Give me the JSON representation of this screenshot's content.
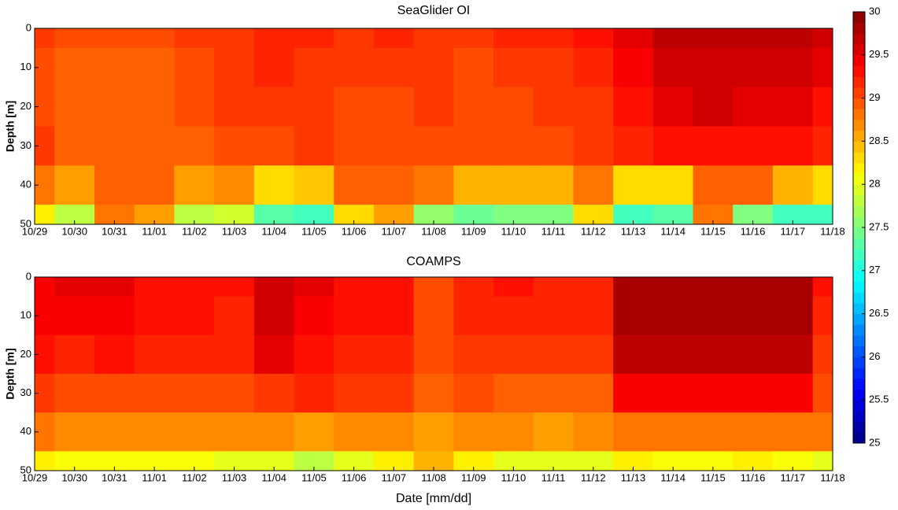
{
  "chart_data": [
    {
      "type": "heatmap",
      "title": "SeaGlider OI",
      "ylabel": "Depth [m]",
      "x": [
        "10/29",
        "10/30",
        "10/31",
        "11/01",
        "11/02",
        "11/03",
        "11/04",
        "11/05",
        "11/06",
        "11/07",
        "11/08",
        "11/09",
        "11/10",
        "11/11",
        "11/12",
        "11/13",
        "11/14",
        "11/15",
        "11/16",
        "11/17",
        "11/18"
      ],
      "y": [
        0,
        10,
        20,
        30,
        40,
        50
      ],
      "values": [
        [
          29.1,
          29.0,
          29.0,
          29.0,
          29.1,
          29.1,
          29.2,
          29.2,
          29.1,
          29.2,
          29.1,
          29.1,
          29.2,
          29.2,
          29.3,
          29.5,
          29.7,
          29.7,
          29.7,
          29.7,
          29.6
        ],
        [
          29.0,
          28.9,
          28.9,
          28.9,
          29.0,
          29.1,
          29.2,
          29.1,
          29.1,
          29.1,
          29.1,
          29.0,
          29.1,
          29.1,
          29.2,
          29.4,
          29.6,
          29.6,
          29.6,
          29.6,
          29.5
        ],
        [
          29.0,
          28.9,
          28.9,
          28.9,
          29.0,
          29.1,
          29.1,
          29.1,
          29.0,
          29.0,
          29.1,
          29.0,
          29.0,
          29.1,
          29.1,
          29.3,
          29.5,
          29.6,
          29.5,
          29.5,
          29.3
        ],
        [
          29.1,
          28.9,
          28.9,
          28.9,
          28.9,
          29.0,
          29.0,
          29.1,
          29.0,
          29.0,
          29.0,
          29.0,
          29.0,
          29.0,
          29.1,
          29.2,
          29.3,
          29.3,
          29.3,
          29.3,
          29.2
        ],
        [
          28.8,
          28.6,
          28.9,
          28.9,
          28.6,
          28.7,
          28.3,
          28.4,
          28.9,
          28.9,
          28.8,
          28.5,
          28.5,
          28.5,
          28.8,
          28.3,
          28.3,
          28.9,
          28.9,
          28.5,
          28.3
        ],
        [
          28.2,
          27.8,
          28.8,
          28.6,
          27.8,
          27.9,
          27.3,
          27.2,
          28.3,
          28.6,
          27.6,
          27.4,
          27.5,
          27.5,
          28.3,
          27.2,
          27.3,
          28.8,
          27.5,
          27.2,
          27.2
        ]
      ],
      "ylim": [
        0,
        50
      ],
      "yticks": [
        0,
        10,
        20,
        30,
        40,
        50
      ],
      "y_reversed": true
    },
    {
      "type": "heatmap",
      "title": "COAMPS",
      "ylabel": "Depth [m]",
      "xlabel": "Date [mm/dd]",
      "x": [
        "10/29",
        "10/30",
        "10/31",
        "11/01",
        "11/02",
        "11/03",
        "11/04",
        "11/05",
        "11/06",
        "11/07",
        "11/08",
        "11/09",
        "11/10",
        "11/11",
        "11/12",
        "11/13",
        "11/14",
        "11/15",
        "11/16",
        "11/17",
        "11/18"
      ],
      "y": [
        0,
        10,
        20,
        30,
        40,
        50
      ],
      "values": [
        [
          29.4,
          29.5,
          29.5,
          29.3,
          29.3,
          29.3,
          29.6,
          29.5,
          29.3,
          29.3,
          29.0,
          29.2,
          29.3,
          29.2,
          29.2,
          29.8,
          29.8,
          29.8,
          29.8,
          29.8,
          29.3
        ],
        [
          29.4,
          29.4,
          29.4,
          29.3,
          29.3,
          29.2,
          29.6,
          29.4,
          29.3,
          29.3,
          29.0,
          29.2,
          29.2,
          29.2,
          29.2,
          29.8,
          29.8,
          29.8,
          29.8,
          29.8,
          29.2
        ],
        [
          29.3,
          29.2,
          29.3,
          29.2,
          29.2,
          29.2,
          29.5,
          29.3,
          29.2,
          29.2,
          29.0,
          29.1,
          29.1,
          29.1,
          29.1,
          29.7,
          29.7,
          29.7,
          29.7,
          29.7,
          29.1
        ],
        [
          29.1,
          29.0,
          29.0,
          29.0,
          29.0,
          29.0,
          29.1,
          29.2,
          29.1,
          29.1,
          28.9,
          29.0,
          28.9,
          28.9,
          28.9,
          29.4,
          29.4,
          29.4,
          29.4,
          29.4,
          29.0
        ],
        [
          28.8,
          28.7,
          28.7,
          28.7,
          28.7,
          28.7,
          28.7,
          28.6,
          28.7,
          28.7,
          28.6,
          28.7,
          28.7,
          28.6,
          28.7,
          28.8,
          28.8,
          28.8,
          28.8,
          28.8,
          28.8
        ],
        [
          28.2,
          28.1,
          28.1,
          28.1,
          28.1,
          28.0,
          28.0,
          27.8,
          28.0,
          28.2,
          28.5,
          28.2,
          28.0,
          28.0,
          28.0,
          28.2,
          28.1,
          28.1,
          28.2,
          28.1,
          28.0
        ]
      ],
      "ylim": [
        0,
        50
      ],
      "yticks": [
        0,
        10,
        20,
        30,
        40,
        50
      ],
      "y_reversed": true
    }
  ],
  "colorbar": {
    "colormap": "jet",
    "clim": [
      25,
      30
    ],
    "ticks": [
      25,
      25.5,
      26,
      26.5,
      27,
      27.5,
      28,
      28.5,
      29,
      29.5,
      30
    ]
  }
}
